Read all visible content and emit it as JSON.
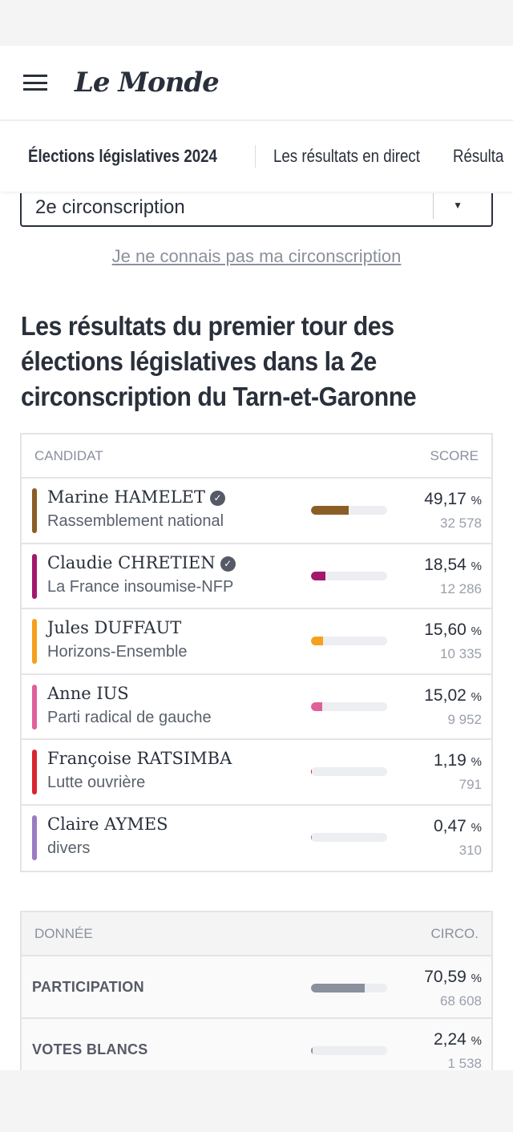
{
  "header": {
    "logo": "Le Monde"
  },
  "subnav": {
    "items": [
      "Élections législatives 2024",
      "Les résultats en direct",
      "Résulta"
    ]
  },
  "select": {
    "value": "2e circonscription"
  },
  "link": "Je ne connais pas ma circonscription",
  "title": "Les résultats du premier tour des élections législatives dans la 2e circonscription du Tarn-et-Garonne",
  "results": {
    "col_candidate": "CANDIDAT",
    "col_score": "SCORE",
    "unit": "%",
    "candidates": [
      {
        "name": "Marine HAMELET",
        "verified": true,
        "party": "Rassemblement national",
        "pct": "49,17",
        "pct_value": 49.17,
        "votes": "32 578",
        "color": "#8b5e26"
      },
      {
        "name": "Claudie CHRETIEN",
        "verified": true,
        "party": "La France insoumise-NFP",
        "pct": "18,54",
        "pct_value": 18.54,
        "votes": "12 286",
        "color": "#a3176e"
      },
      {
        "name": "Jules DUFFAUT",
        "verified": false,
        "party": "Horizons-Ensemble",
        "pct": "15,60",
        "pct_value": 15.6,
        "votes": "10 335",
        "color": "#f5a11c"
      },
      {
        "name": "Anne IUS",
        "verified": false,
        "party": "Parti radical de gauche",
        "pct": "15,02",
        "pct_value": 15.02,
        "votes": "9 952",
        "color": "#e0609a"
      },
      {
        "name": "Françoise RATSIMBA",
        "verified": false,
        "party": "Lutte ouvrière",
        "pct": "1,19",
        "pct_value": 1.19,
        "votes": "791",
        "color": "#d7262f"
      },
      {
        "name": "Claire AYMES",
        "verified": false,
        "party": "divers",
        "pct": "0,47",
        "pct_value": 0.47,
        "votes": "310",
        "color": "#9b7cc4"
      }
    ]
  },
  "data_table": {
    "col_data": "DONNÉE",
    "col_circo": "CIRCO.",
    "rows": [
      {
        "label": "PARTICIPATION",
        "pct": "70,59",
        "pct_value": 70.59,
        "count": "68 608"
      },
      {
        "label": "VOTES BLANCS",
        "pct": "2,24",
        "pct_value": 2.24,
        "count": "1 538"
      }
    ]
  }
}
